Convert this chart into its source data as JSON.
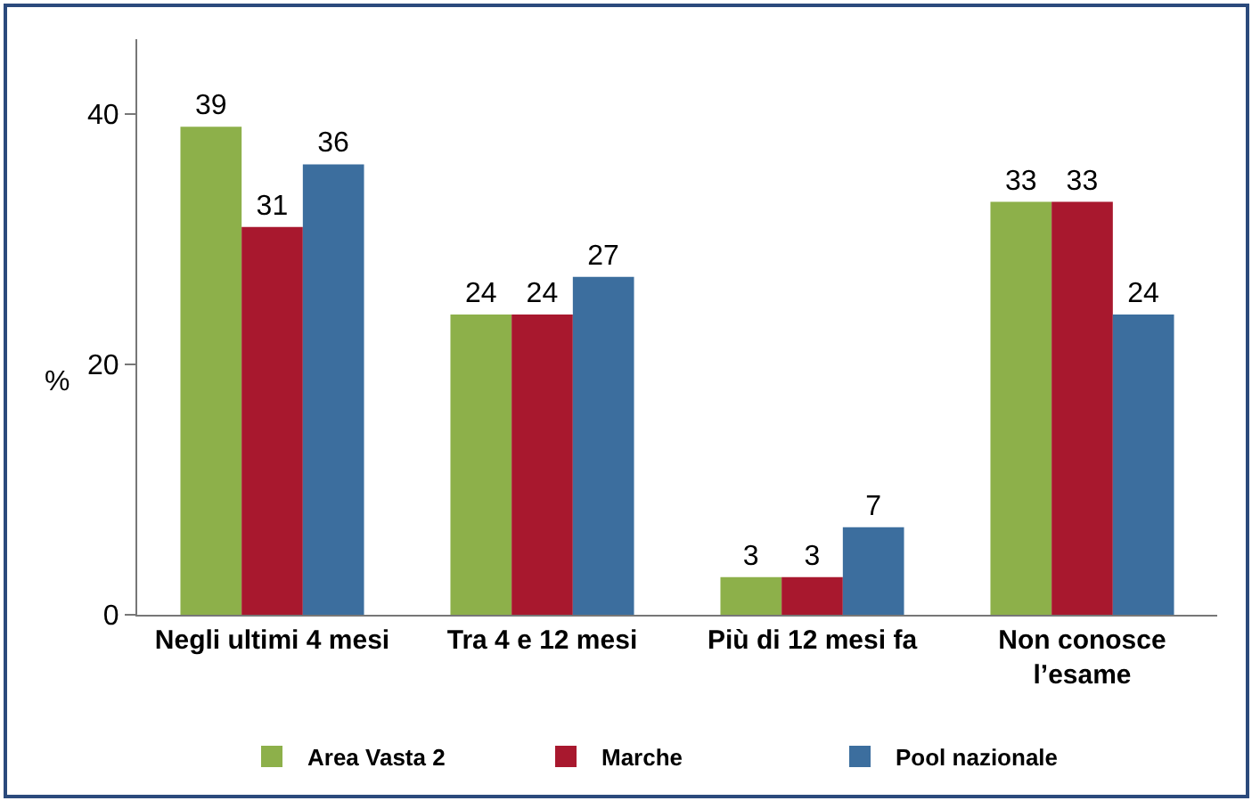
{
  "chart_data": {
    "type": "bar",
    "ylabel": "%",
    "categories": [
      "Negli ultimi 4 mesi",
      "Tra 4 e 12 mesi",
      "Più di 12 mesi fa",
      "Non conosce\nl’esame"
    ],
    "series": [
      {
        "name": "Area Vasta 2",
        "color": "#8db04a",
        "values": [
          39,
          24,
          3,
          33
        ]
      },
      {
        "name": "Marche",
        "color": "#a8182e",
        "values": [
          31,
          24,
          3,
          33
        ]
      },
      {
        "name": "Pool nazionale",
        "color": "#3c6e9e",
        "values": [
          36,
          27,
          7,
          24
        ]
      }
    ],
    "ylim": [
      0,
      46
    ],
    "yticks": [
      0,
      20,
      40
    ],
    "grid": false,
    "legend": "bottom",
    "data_labels": true
  }
}
